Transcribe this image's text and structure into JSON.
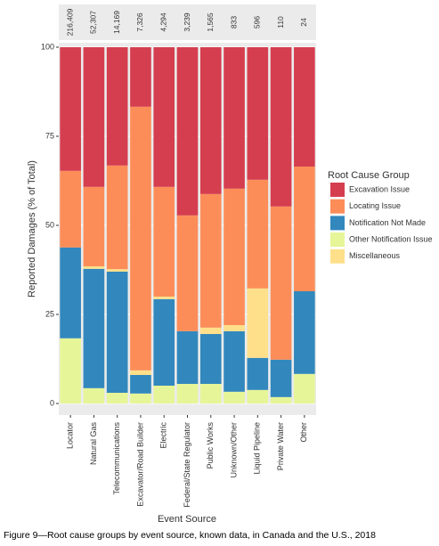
{
  "chart_data": {
    "type": "stacked_bar",
    "x_label": "Event Source",
    "y_label": "Reported Damages (% of Total)",
    "caption": "Figure 9—Root cause groups by event source, known data, in Canada and the U.S., 2018",
    "legend_title": "Root Cause Group",
    "categories": [
      "Locator",
      "Natural Gas",
      "Telecommunications",
      "Excavator/Road Builder",
      "Electric",
      "Federal/State Regulator",
      "Public Works",
      "Unknown/Other",
      "Liquid Pipeline",
      "Private Water",
      "Other"
    ],
    "count_labels": [
      "216,409",
      "52,307",
      "14,169",
      "7,326",
      "4,294",
      "3,239",
      "1,565",
      "833",
      "596",
      "110",
      "24"
    ],
    "series": [
      {
        "name": "Excavation Issue",
        "color": "#d53e4f",
        "values": [
          34.7,
          39.2,
          33.2,
          16.7,
          39.2,
          47.2,
          41.2,
          39.7,
          37.2,
          44.7,
          33.5
        ]
      },
      {
        "name": "Locating Issue",
        "color": "#fc8d59",
        "values": [
          21.5,
          22.3,
          29.1,
          74,
          30.8,
          32.5,
          37.5,
          38.3,
          30.5,
          43,
          35
        ]
      },
      {
        "name": "Notification Not Made",
        "color": "#3288bd",
        "values": [
          25.5,
          33.5,
          34,
          5.2,
          24.3,
          14.8,
          14,
          17,
          9,
          10.5,
          23.2
        ]
      },
      {
        "name": "Other Notification Issue",
        "color": "#e6f598",
        "values": [
          18.3,
          4.3,
          3,
          2.8,
          5,
          5.5,
          5.5,
          3.3,
          3.8,
          1.8,
          8.3
        ]
      },
      {
        "name": "Miscellaneous",
        "color": "#fee08b",
        "values": [
          0,
          0.7,
          0.7,
          1.3,
          0.7,
          0,
          1.8,
          1.7,
          19.5,
          0,
          0
        ]
      }
    ],
    "ylim": [
      0,
      100
    ],
    "yticks": [
      0,
      25,
      50,
      75,
      100
    ],
    "grid": true
  }
}
